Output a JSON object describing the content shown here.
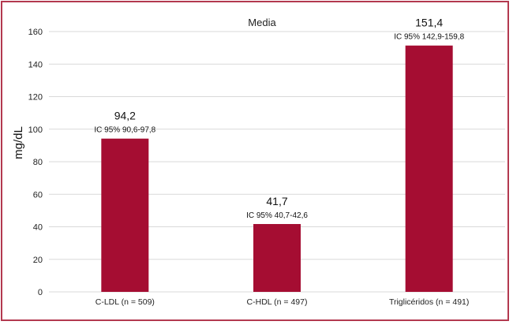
{
  "chart_data": {
    "type": "bar",
    "title": "Media",
    "ylabel": "mg/dL",
    "xlabel": "",
    "ylim": [
      0,
      160
    ],
    "yticks": [
      0,
      20,
      40,
      60,
      80,
      100,
      120,
      140,
      160
    ],
    "grid": true,
    "categories": [
      "C-LDL (n = 509)",
      "C-HDL (n = 497)",
      "Triglicéridos (n = 491)"
    ],
    "values": [
      94.2,
      41.7,
      151.4
    ],
    "value_labels": [
      "94,2",
      "41,7",
      "151,4"
    ],
    "ci_labels": [
      "IC 95% 90,6-97,8",
      "IC 95% 40,7-42,6",
      "IC 95% 142,9-159,8"
    ],
    "bar_color": "#a50d32",
    "gridline_color": "#d9d9d9",
    "frame_color": "#b3394f"
  }
}
